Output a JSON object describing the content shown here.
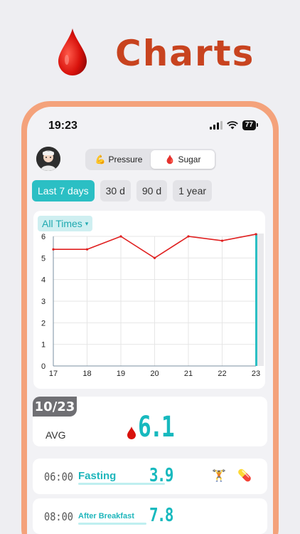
{
  "hero": {
    "title": "Charts"
  },
  "status_bar": {
    "time": "19:23",
    "battery": "77"
  },
  "mode_switch": [
    {
      "emoji": "💪",
      "label": "Pressure",
      "active": false
    },
    {
      "emoji": "🩸",
      "label": "Sugar",
      "active": true
    }
  ],
  "ranges": [
    {
      "label": "Last 7 days",
      "active": true
    },
    {
      "label": "30 d",
      "active": false
    },
    {
      "label": "90 d",
      "active": false
    },
    {
      "label": "1 year",
      "active": false
    }
  ],
  "filter": {
    "label": "All Times",
    "arrow": "▾"
  },
  "chart_data": {
    "type": "line",
    "x": [
      17,
      18,
      19,
      20,
      21,
      22,
      23
    ],
    "series": [
      {
        "values": [
          5.4,
          5.4,
          6.0,
          5.0,
          6.0,
          5.8,
          6.1
        ],
        "color": "#e02020"
      }
    ],
    "ylim": [
      0,
      6
    ],
    "yticks": [
      0,
      1,
      2,
      3,
      4,
      5,
      6
    ],
    "xticks": [
      17,
      18,
      19,
      20,
      21,
      22,
      23
    ],
    "grid": true,
    "highlight_x": 23,
    "highlight_color": "#2bbfc4"
  },
  "summary": {
    "date": "10/23",
    "avg_label": "AVG",
    "avg_value": "6.1"
  },
  "entries": [
    {
      "time": "06:00",
      "label": "Fasting",
      "value": "3.9",
      "icons": [
        "🏋️",
        "💊"
      ]
    },
    {
      "time": "08:00",
      "label": "After Breakfast",
      "value": "7.8",
      "icons": []
    }
  ],
  "colors": {
    "accent": "#2bbfc4",
    "brand": "#c8431f",
    "frame": "#f4a27b",
    "line": "#e02020"
  }
}
